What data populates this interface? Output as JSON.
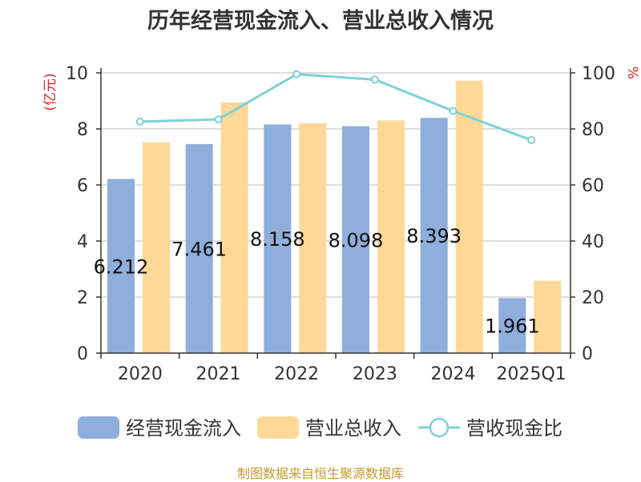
{
  "chart_data": {
    "type": "bar",
    "title": "历年经营现金流入、营业总收入情况",
    "categories": [
      "2020",
      "2021",
      "2022",
      "2023",
      "2024",
      "2025Q1"
    ],
    "series": [
      {
        "name": "经营现金流入",
        "type": "bar",
        "axis": "left",
        "color": "#8eaedb",
        "values": [
          6.212,
          7.461,
          8.158,
          8.098,
          8.393,
          1.961
        ]
      },
      {
        "name": "营业总收入",
        "type": "bar",
        "axis": "left",
        "color": "#fdd897",
        "values": [
          7.52,
          8.95,
          8.2,
          8.3,
          9.72,
          2.58
        ]
      },
      {
        "name": "营收现金比",
        "type": "line",
        "axis": "right",
        "color": "#7fd1d6",
        "values": [
          82.6,
          83.4,
          99.5,
          97.6,
          86.4,
          76.0
        ]
      }
    ],
    "data_labels": [
      "6.212",
      "7.461",
      "8.158",
      "8.098",
      "8.393",
      "1.961"
    ],
    "ylabel_left": "(亿元)",
    "ylabel_right": "%",
    "ylim_left": [
      0,
      10
    ],
    "ylim_right": [
      0,
      100
    ],
    "yticks_left": [
      "0",
      "2",
      "4",
      "6",
      "8",
      "10"
    ],
    "yticks_right": [
      "0",
      "20",
      "40",
      "60",
      "80",
      "100"
    ],
    "grid": true,
    "legend": "bottom"
  },
  "footer": "制图数据来自恒生聚源数据库"
}
